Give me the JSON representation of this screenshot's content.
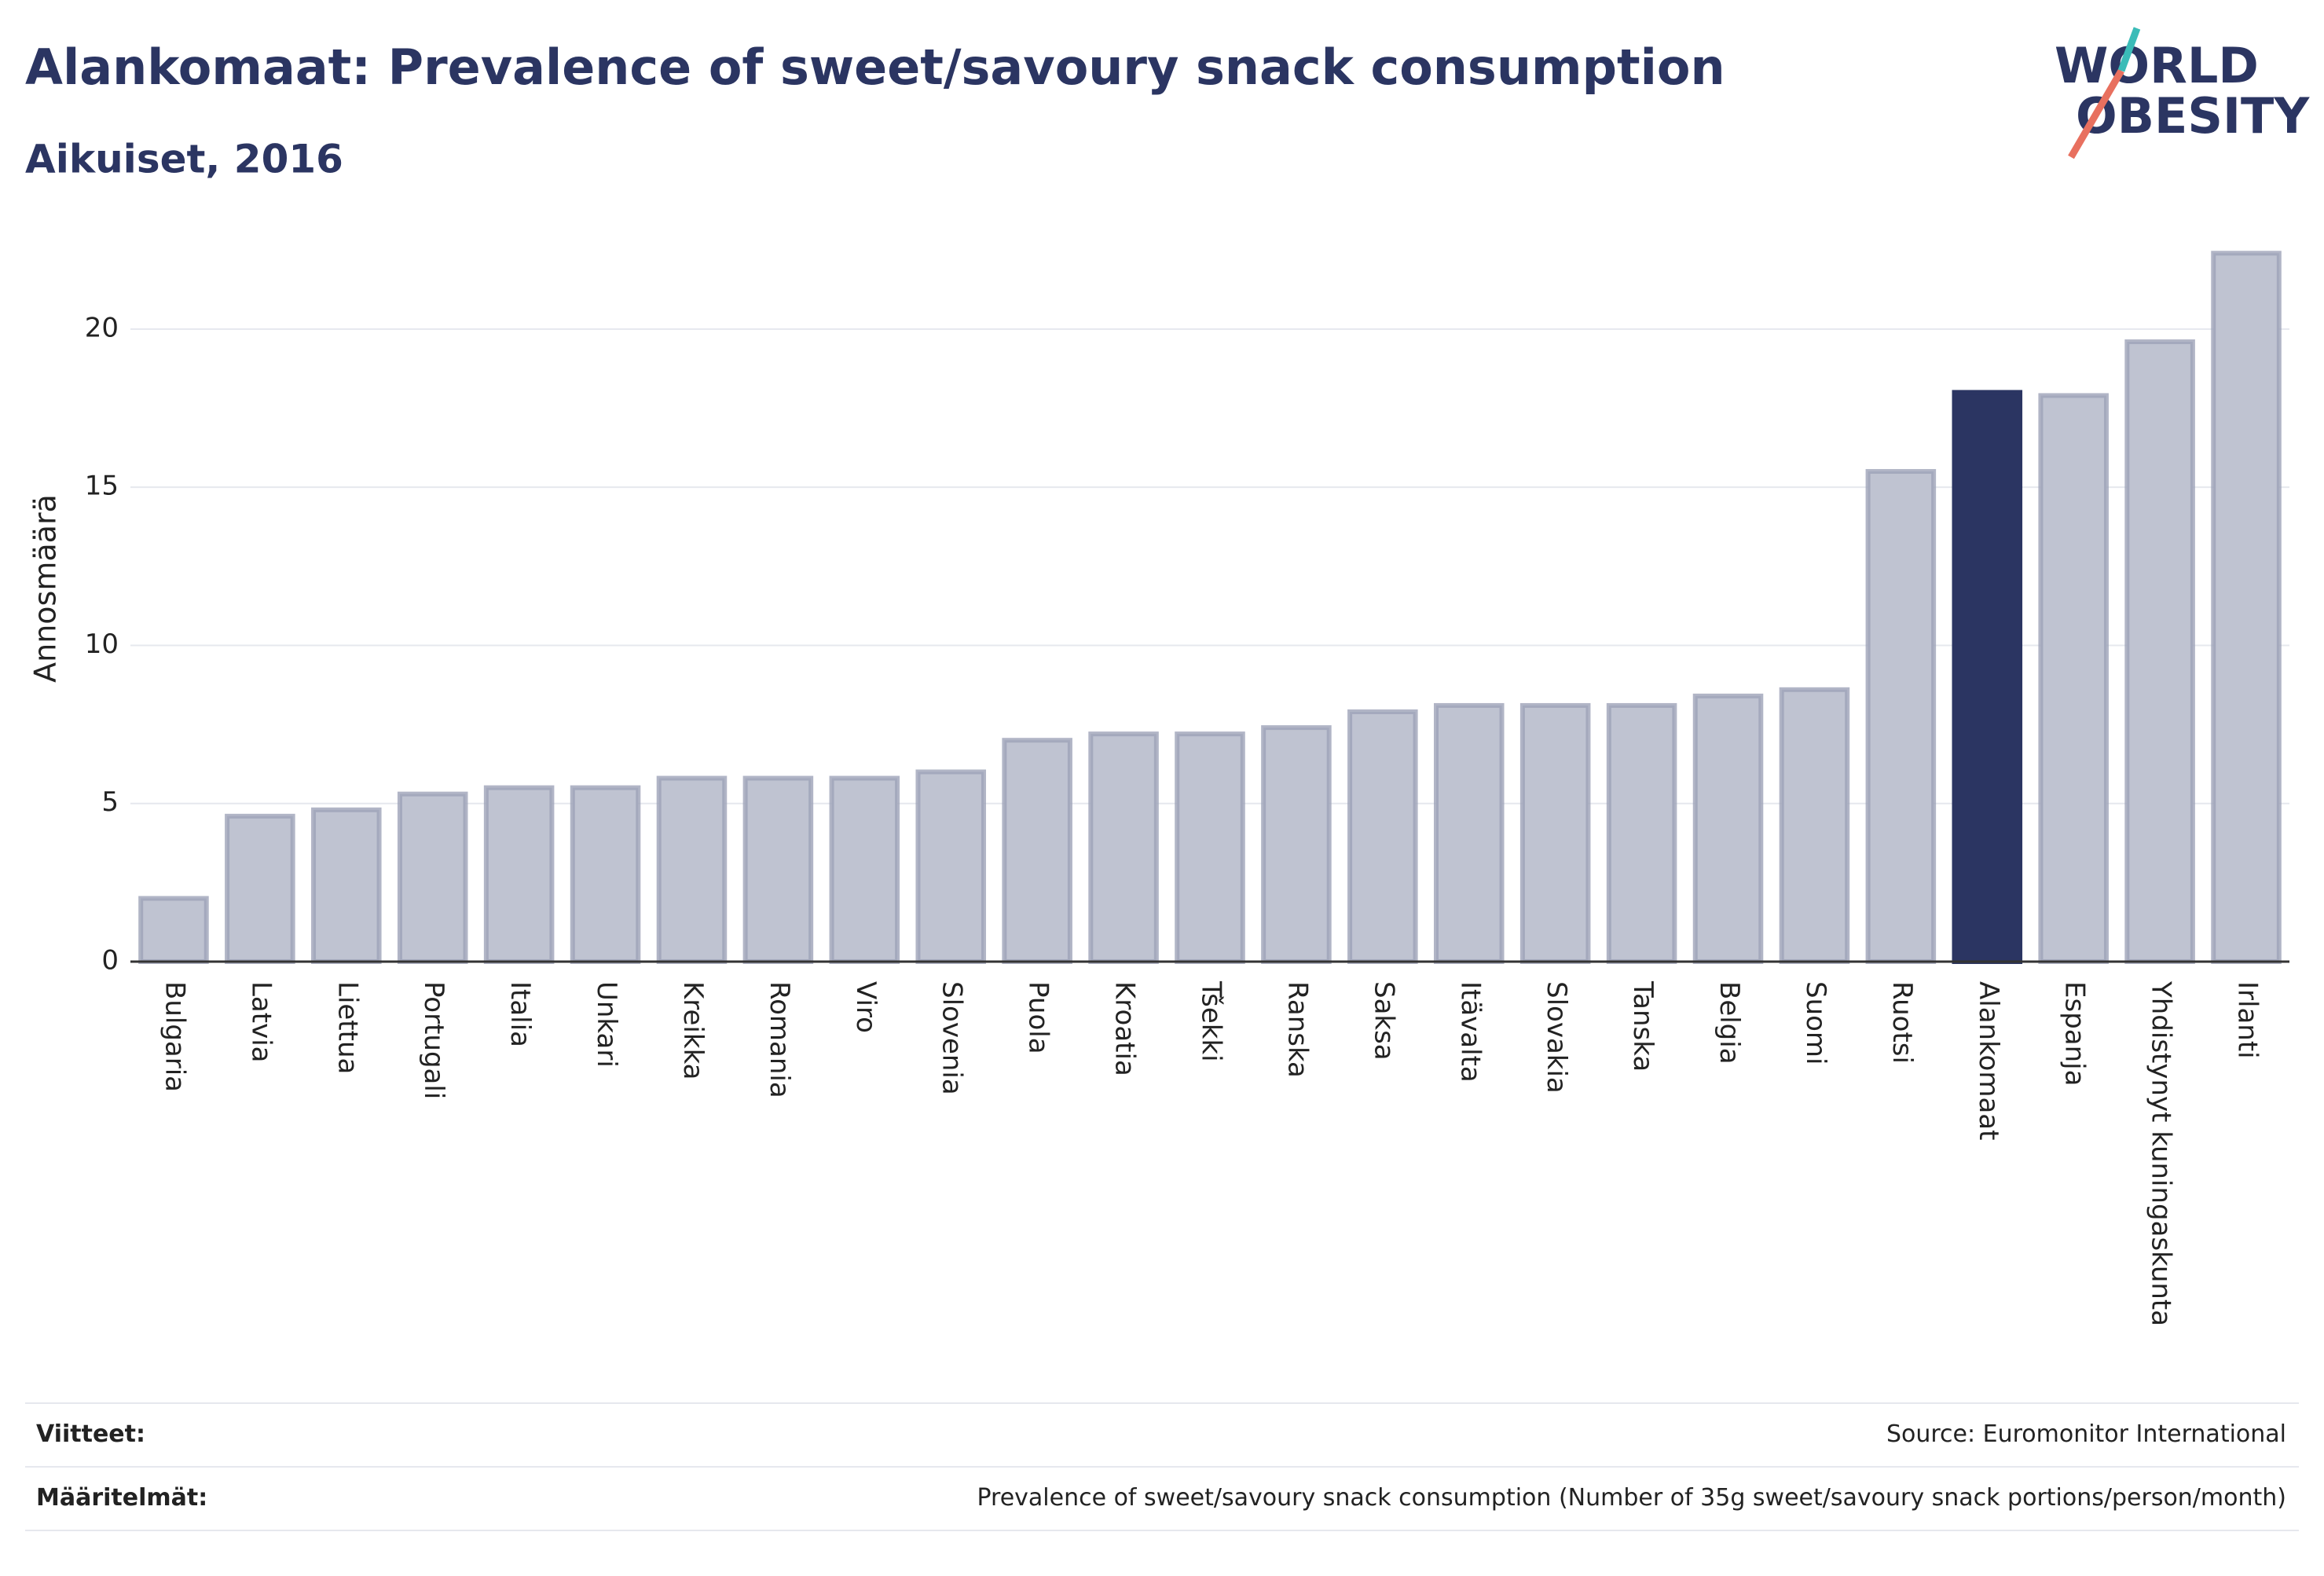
{
  "chart_data": {
    "type": "bar",
    "title": "Alankomaat: Prevalence of sweet/savoury snack consumption",
    "subtitle": "Aikuiset, 2016",
    "logo": [
      "WORLD",
      "OBESITY"
    ],
    "y_label": "Annosmäärä",
    "categories": [
      "Bulgaria",
      "Latvia",
      "Liettua",
      "Portugali",
      "Italia",
      "Unkari",
      "Kreikka",
      "Romania",
      "Viro",
      "Slovenia",
      "Puola",
      "Kroatia",
      "Tšekki",
      "Ranska",
      "Saksa",
      "Itävalta",
      "Slovakia",
      "Tanska",
      "Belgia",
      "Suomi",
      "Ruotsi",
      "Alankomaat",
      "Espanja",
      "Yhdistynyt kuningaskunta",
      "Irlanti"
    ],
    "values": [
      2.0,
      4.6,
      4.8,
      5.3,
      5.5,
      5.5,
      5.8,
      5.8,
      5.8,
      6.0,
      7.0,
      7.2,
      7.2,
      7.4,
      7.9,
      8.1,
      8.1,
      8.1,
      8.4,
      8.6,
      15.5,
      18.0,
      17.9,
      19.6,
      22.4
    ],
    "colors": [
      "#bfc3d1",
      "#bfc3d1",
      "#bfc3d1",
      "#bfc3d1",
      "#bfc3d1",
      "#bfc3d1",
      "#bfc3d1",
      "#bfc3d1",
      "#bfc3d1",
      "#bfc3d1",
      "#bfc3d1",
      "#bfc3d1",
      "#bfc3d1",
      "#bfc3d1",
      "#bfc3d1",
      "#bfc3d1",
      "#bfc3d1",
      "#bfc3d1",
      "#bfc3d1",
      "#bfc3d1",
      "#bfc3d1",
      "#2b3562",
      "#bfc3d1",
      "#bfc3d1",
      "#bfc3d1"
    ],
    "ylim": [
      0,
      23.5
    ],
    "yticks": [
      0,
      5,
      10,
      15,
      20
    ],
    "grid": true,
    "footer": [
      [
        "Viitteet:",
        "Source: Euromonitor International"
      ],
      [
        "Määritelmät:",
        "Prevalence of sweet/savoury snack consumption (Number of 35g sweet/savoury snack portions/person/month)"
      ]
    ]
  }
}
